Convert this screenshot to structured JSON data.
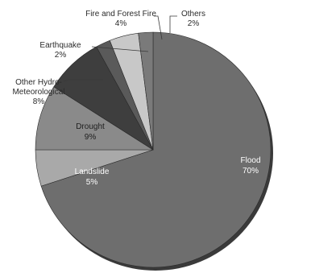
{
  "chart_data": {
    "type": "pie",
    "title": "",
    "start": "top",
    "direction": "clockwise",
    "slices": [
      {
        "label": "Flood",
        "value": 70,
        "value_label": "70%",
        "color": "#6e6e6e",
        "label_color": "#ffffff",
        "label_placement": "inside"
      },
      {
        "label": "Landslide",
        "value": 5,
        "value_label": "5%",
        "color": "#a9a9a9",
        "label_color": "#ffffff",
        "label_placement": "inside"
      },
      {
        "label": "Drought",
        "value": 9,
        "value_label": "9%",
        "color": "#8a8a8a",
        "label_color": "#1e1e1e",
        "label_placement": "inside"
      },
      {
        "label": "Other Hydro-Meteorological",
        "value": 8,
        "value_label": "8%",
        "color": "#3e3e3e",
        "label_color": "#2b2b2b",
        "label_placement": "outside"
      },
      {
        "label": "Earthquake",
        "value": 2,
        "value_label": "2%",
        "color": "#5a5a5a",
        "label_color": "#2b2b2b",
        "label_placement": "outside"
      },
      {
        "label": "Fire and Forest Fire",
        "value": 4,
        "value_label": "4%",
        "color": "#c8c8c8",
        "label_color": "#2b2b2b",
        "label_placement": "outside"
      },
      {
        "label": "Others",
        "value": 2,
        "value_label": "2%",
        "color": "#7a7a7a",
        "label_color": "#2b2b2b",
        "label_placement": "outside"
      }
    ]
  }
}
